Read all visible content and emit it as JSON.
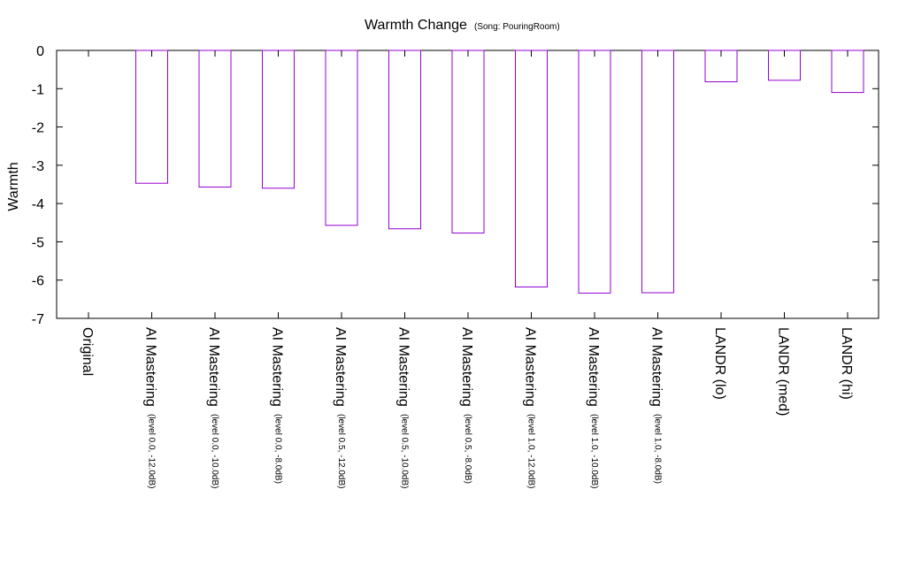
{
  "chart_data": {
    "type": "bar",
    "title": "Warmth Change",
    "subtitle": "(Song: PouringRoom)",
    "xlabel": "",
    "ylabel": "Warmth",
    "ylim": [
      -7,
      0
    ],
    "yticks": [
      0,
      -1,
      -2,
      -3,
      -4,
      -5,
      -6,
      -7
    ],
    "grid": false,
    "bar_color": "#9400D3",
    "categories": [
      {
        "label": "Original",
        "detail": ""
      },
      {
        "label": "AI Mastering",
        "detail": "(level 0.0, -12.0dB)"
      },
      {
        "label": "AI Mastering",
        "detail": "(level 0.0, -10.0dB)"
      },
      {
        "label": "AI Mastering",
        "detail": "(level 0.0, -8.0dB)"
      },
      {
        "label": "AI Mastering",
        "detail": "(level 0.5, -12.0dB)"
      },
      {
        "label": "AI Mastering",
        "detail": "(level 0.5, -10.0dB)"
      },
      {
        "label": "AI Mastering",
        "detail": "(level 0.5, -8.0dB)"
      },
      {
        "label": "AI Mastering",
        "detail": "(level 1.0, -12.0dB)"
      },
      {
        "label": "AI Mastering",
        "detail": "(level 1.0, -10.0dB)"
      },
      {
        "label": "AI Mastering",
        "detail": "(level 1.0, -8.0dB)"
      },
      {
        "label": "LANDR (lo)",
        "detail": ""
      },
      {
        "label": "LANDR (med)",
        "detail": ""
      },
      {
        "label": "LANDR (hi)",
        "detail": ""
      }
    ],
    "values": [
      0,
      -3.47,
      -3.57,
      -3.6,
      -4.57,
      -4.66,
      -4.77,
      -6.18,
      -6.34,
      -6.33,
      -0.82,
      -0.78,
      -1.1
    ]
  }
}
